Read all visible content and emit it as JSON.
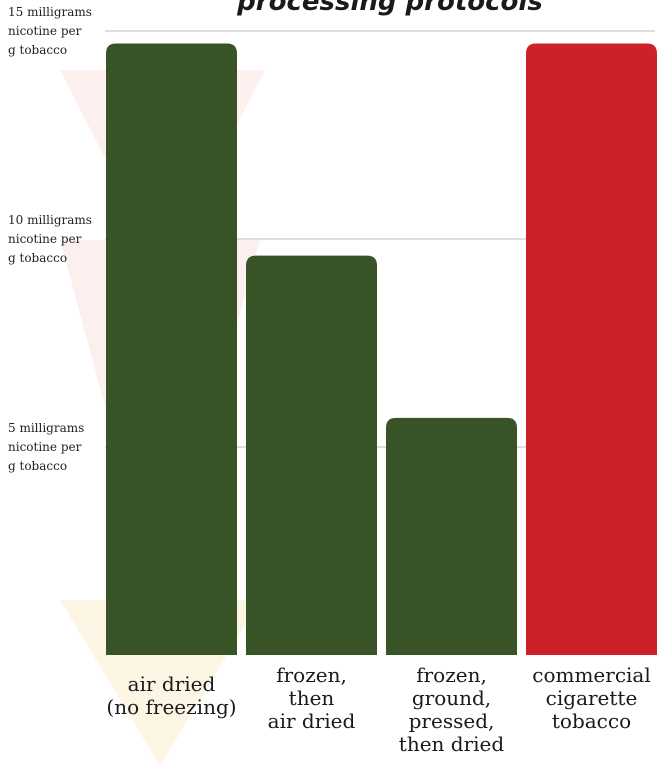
{
  "chart_data": {
    "type": "bar",
    "title": "processing protocols",
    "xlabel": "",
    "ylabel": "",
    "ylim": [
      0,
      15
    ],
    "grid": true,
    "yticks": [
      {
        "value": 15,
        "label": [
          "15 milligrams",
          "nicotine per",
          "g tobacco"
        ]
      },
      {
        "value": 10,
        "label": [
          "10 milligrams",
          "nicotine per",
          "g tobacco"
        ]
      },
      {
        "value": 5,
        "label": [
          "5 milligrams",
          "nicotine per",
          "g tobacco"
        ]
      }
    ],
    "categories": [
      [
        "air dried",
        "(no freezing)"
      ],
      [
        "frozen,",
        "then",
        "air dried"
      ],
      [
        "frozen,",
        "ground,",
        "pressed,",
        "then dried"
      ],
      [
        "commercial",
        "cigarette",
        "tobacco"
      ]
    ],
    "values": [
      14.7,
      9.6,
      5.7,
      14.7
    ],
    "colors": [
      "#385426",
      "#385426",
      "#385426",
      "#cc2128"
    ]
  }
}
